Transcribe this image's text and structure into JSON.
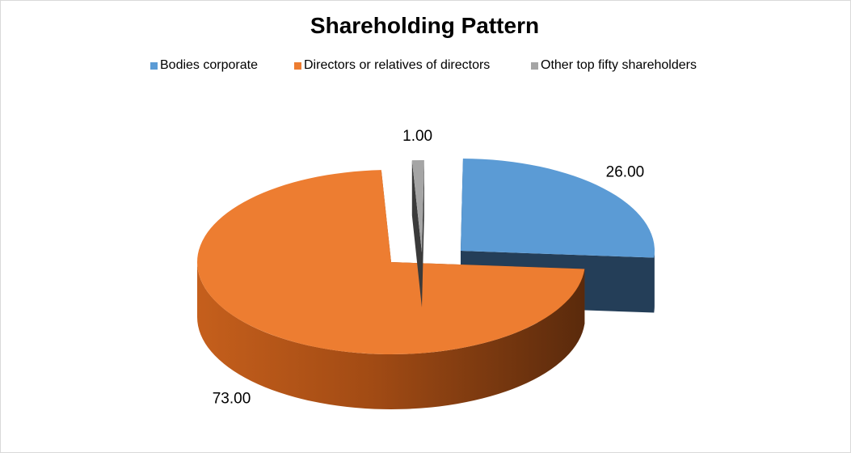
{
  "chart_data": {
    "type": "pie",
    "title": "Shareholding Pattern",
    "categories": [
      "Bodies corporate",
      "Directors or relatives of directors",
      "Other top fifty shareholders"
    ],
    "values": [
      26.0,
      73.0,
      1.0
    ],
    "data_labels": [
      "26.00",
      "73.00",
      "1.00"
    ],
    "colors": [
      "#5b9bd5",
      "#ed7d31",
      "#a5a5a5"
    ],
    "legend_position": "top",
    "exploded": true,
    "three_d": true
  }
}
